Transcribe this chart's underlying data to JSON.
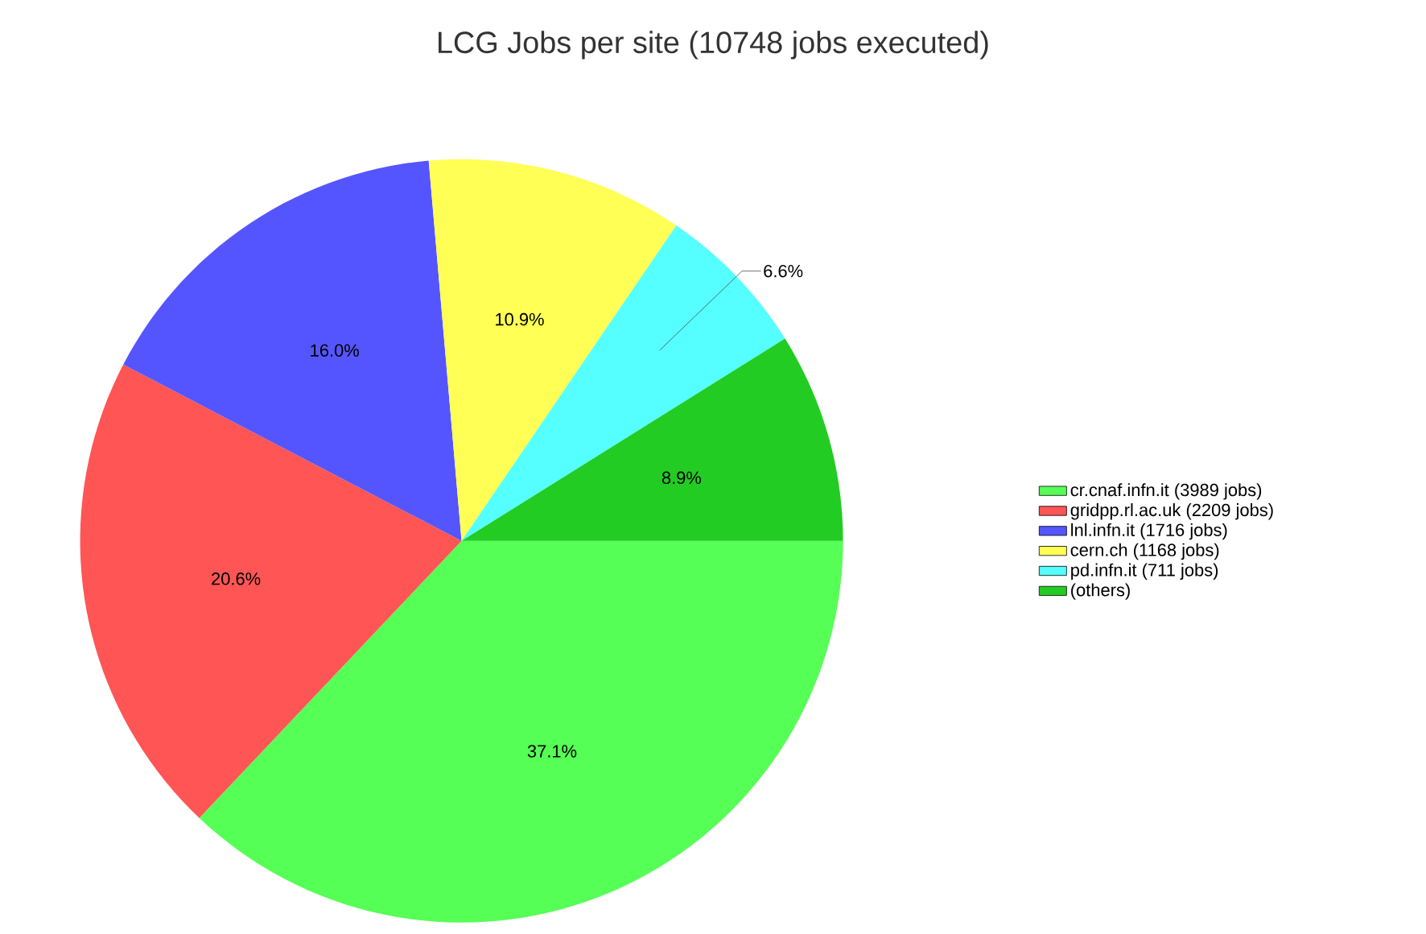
{
  "chart_data": {
    "type": "pie",
    "title": "LCG Jobs per site (10748 jobs executed)",
    "categories": [
      "cr.cnaf.infn.it (3989 jobs)",
      "gridpp.rl.ac.uk (2209 jobs)",
      "lnl.infn.it (1716 jobs)",
      "cern.ch (1168 jobs)",
      "pd.infn.it (711 jobs)",
      "(others)"
    ],
    "values": [
      37.1,
      20.6,
      16.0,
      10.9,
      6.6,
      8.9
    ],
    "colors": [
      "#55ff55",
      "#ff5555",
      "#5555ff",
      "#ffff55",
      "#55ffff",
      "#22cc22"
    ],
    "value_labels": [
      "37.1%",
      "20.6%",
      "16.0%",
      "10.9%",
      "6.6%",
      "8.9%"
    ],
    "legend": "right"
  }
}
